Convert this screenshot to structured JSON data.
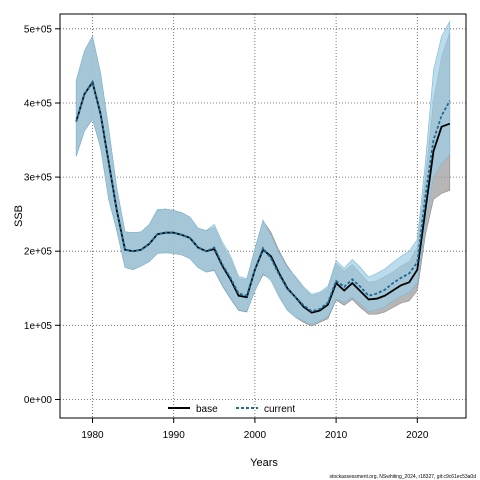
{
  "chart_data": {
    "type": "line",
    "title": "",
    "xlabel": "Years",
    "ylabel": "SSB",
    "xlim": [
      1976,
      2026
    ],
    "ylim": [
      -25000,
      520000
    ],
    "xticks": [
      1980,
      1990,
      2000,
      2010,
      2020
    ],
    "yticks": [
      0,
      100000,
      200000,
      300000,
      400000,
      500000
    ],
    "ytick_labels": [
      "0e+00",
      "1e+05",
      "2e+05",
      "3e+05",
      "4e+05",
      "5e+05"
    ],
    "grid": true,
    "legend_position": "bottom-center",
    "x": [
      1978,
      1979,
      1980,
      1981,
      1982,
      1983,
      1984,
      1985,
      1986,
      1987,
      1988,
      1989,
      1990,
      1991,
      1992,
      1993,
      1994,
      1995,
      1996,
      1997,
      1998,
      1999,
      2000,
      2001,
      2002,
      2003,
      2004,
      2005,
      2006,
      2007,
      2008,
      2009,
      2010,
      2011,
      2012,
      2013,
      2014,
      2015,
      2016,
      2017,
      2018,
      2019,
      2020,
      2021,
      2022,
      2023,
      2024
    ],
    "series": [
      {
        "name": "base",
        "color": "#000000",
        "line_style": "solid",
        "band_color": "#9e9e9e",
        "values": [
          375000,
          412000,
          428000,
          385000,
          320000,
          255000,
          202000,
          200000,
          202000,
          210000,
          223000,
          225000,
          225000,
          222000,
          218000,
          205000,
          200000,
          203000,
          180000,
          162000,
          140000,
          138000,
          175000,
          202000,
          193000,
          170000,
          150000,
          138000,
          125000,
          117000,
          120000,
          128000,
          157000,
          147000,
          157000,
          146000,
          135000,
          136000,
          140000,
          147000,
          154000,
          158000,
          175000,
          255000,
          335000,
          368000,
          372000
        ],
        "lower": [
          328000,
          362000,
          378000,
          340000,
          270000,
          228000,
          178000,
          175000,
          180000,
          186000,
          197000,
          198000,
          197000,
          195000,
          190000,
          178000,
          172000,
          174000,
          153000,
          136000,
          120000,
          118000,
          147000,
          168000,
          163000,
          140000,
          121000,
          111000,
          104000,
          99000,
          104000,
          109000,
          134000,
          127000,
          135000,
          124000,
          115000,
          115000,
          118000,
          124000,
          130000,
          133000,
          147000,
          222000,
          270000,
          278000,
          282000
        ],
        "upper": [
          430000,
          470000,
          490000,
          440000,
          365000,
          285000,
          226000,
          225000,
          226000,
          236000,
          256000,
          257000,
          255000,
          252000,
          246000,
          231000,
          228000,
          232000,
          208000,
          190000,
          163000,
          161000,
          203000,
          241000,
          225000,
          200000,
          180000,
          165000,
          150000,
          140000,
          143000,
          150000,
          183000,
          173000,
          182000,
          170000,
          158000,
          160000,
          166000,
          172000,
          180000,
          186000,
          205000,
          300000,
          403000,
          462000,
          495000
        ]
      },
      {
        "name": "current",
        "color": "#1b6c93",
        "line_style": "dashed",
        "band_color": "#9ccde6",
        "values": [
          375000,
          412000,
          428000,
          385000,
          320000,
          255000,
          202000,
          200000,
          202000,
          210000,
          223000,
          225000,
          225000,
          222000,
          218000,
          205000,
          200000,
          205000,
          182000,
          164000,
          143000,
          140000,
          175000,
          204000,
          190000,
          168000,
          149000,
          138000,
          127000,
          119000,
          122000,
          131000,
          160000,
          152000,
          162000,
          152000,
          140000,
          143000,
          148000,
          157000,
          164000,
          170000,
          185000,
          275000,
          350000,
          383000,
          403000
        ],
        "lower": [
          328000,
          362000,
          378000,
          340000,
          270000,
          228000,
          178000,
          175000,
          180000,
          186000,
          197000,
          198000,
          197000,
          195000,
          190000,
          178000,
          172000,
          175000,
          154000,
          137000,
          121000,
          119000,
          146000,
          170000,
          160000,
          138000,
          120000,
          111000,
          106000,
          101000,
          106000,
          112000,
          135000,
          131000,
          138000,
          129000,
          119000,
          121000,
          125000,
          133000,
          139000,
          144000,
          157000,
          238000,
          300000,
          318000,
          330000
        ],
        "upper": [
          430000,
          470000,
          490000,
          440000,
          365000,
          285000,
          226000,
          225000,
          226000,
          236000,
          256000,
          257000,
          255000,
          252000,
          246000,
          231000,
          228000,
          236000,
          212000,
          194000,
          166000,
          163000,
          203000,
          242000,
          221000,
          197000,
          178000,
          166000,
          152000,
          142000,
          145000,
          153000,
          187000,
          177000,
          189000,
          178000,
          165000,
          170000,
          176000,
          185000,
          193000,
          200000,
          216000,
          320000,
          444000,
          490000,
          510000
        ]
      }
    ],
    "footer": "stockassessment.org, NSwhiting_2024, r18327, git:c9c61ec53a0d"
  }
}
